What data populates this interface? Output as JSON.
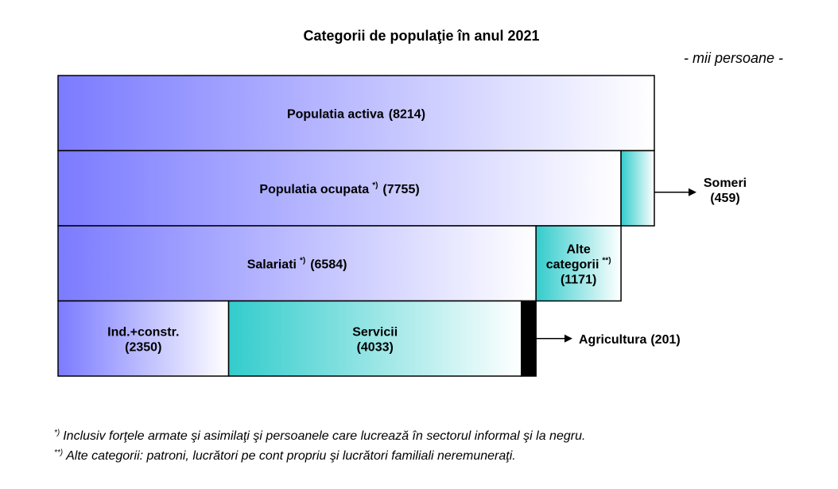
{
  "chart_data": {
    "type": "nested-bar",
    "title": "Categorii de populaţie în anul 2021",
    "unit": "- mii persoane -",
    "rows": [
      {
        "segments": [
          {
            "name": [
              "Populatia activa"
            ],
            "value": 8214,
            "value_label": "(8214)",
            "color": "#7b7bff",
            "gradient": true
          }
        ]
      },
      {
        "segments": [
          {
            "name": [
              "Populatia ocupata"
            ],
            "note": "*)",
            "value": 7755,
            "value_label": "(7755)",
            "color": "#7b7bff",
            "gradient": true
          },
          {
            "name": [
              "Someri"
            ],
            "value": 459,
            "value_label": "(459)",
            "color": "#33cccc",
            "gradient": true
          }
        ]
      },
      {
        "segments": [
          {
            "name": [
              "Salariati"
            ],
            "note": "*)",
            "value": 6584,
            "value_label": "(6584)",
            "color": "#7b7bff",
            "gradient": true
          },
          {
            "name": [
              "Alte",
              "categorii"
            ],
            "note": "**)",
            "value": 1171,
            "value_label": "(1171)",
            "color": "#33cccc",
            "gradient": true
          }
        ]
      },
      {
        "segments": [
          {
            "name": [
              "Ind.+constr."
            ],
            "value": 2350,
            "value_label": "(2350)",
            "color": "#7b7bff",
            "gradient": true
          },
          {
            "name": [
              "Servicii"
            ],
            "value": 4033,
            "value_label": "(4033)",
            "color": "#33cccc",
            "gradient": true
          },
          {
            "name": [
              "Agricultura"
            ],
            "value": 201,
            "value_label": "(201)",
            "color": "#000000",
            "gradient": false
          }
        ]
      }
    ],
    "footnotes": [
      {
        "mark": "*)",
        "text": "Inclusiv forţele armate şi asimilaţi şi persoanele care lucrează în sectorul informal şi la negru."
      },
      {
        "mark": "**)",
        "text": "Alte categorii: patroni, lucrători pe cont propriu şi lucrători familiali neremuneraţi."
      }
    ]
  }
}
